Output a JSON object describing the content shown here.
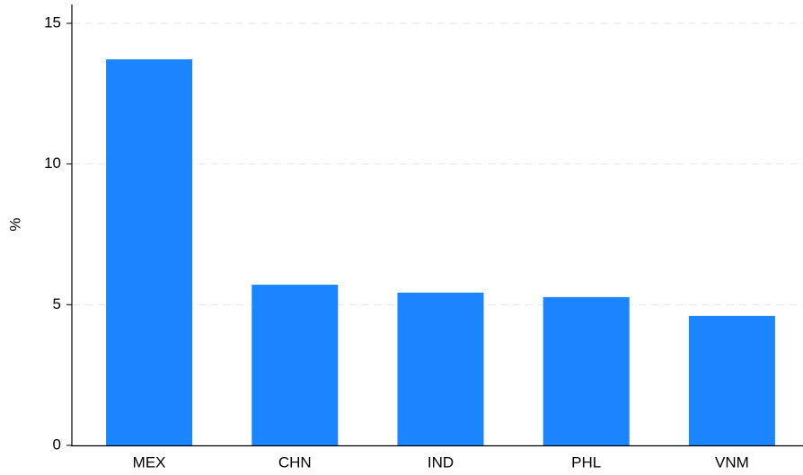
{
  "chart_data": {
    "type": "bar",
    "y_label": "%",
    "categories": [
      "MEX",
      "CHN",
      "IND",
      "PHL",
      "VNM"
    ],
    "values": [
      13.72,
      5.71,
      5.43,
      5.27,
      4.6
    ],
    "color": "#1a85ff",
    "ylim": [
      0,
      15
    ],
    "yticks": [
      0,
      5,
      10,
      15
    ],
    "grid": true
  }
}
